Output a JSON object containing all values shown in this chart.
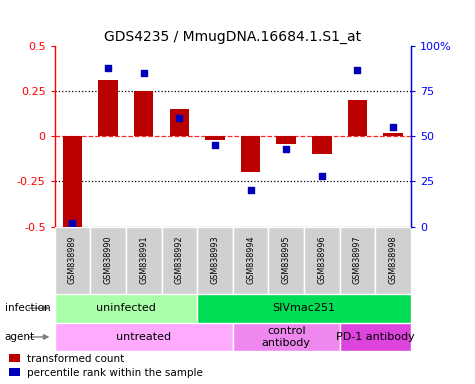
{
  "title": "GDS4235 / MmugDNA.16684.1.S1_at",
  "samples": [
    "GSM838989",
    "GSM838990",
    "GSM838991",
    "GSM838992",
    "GSM838993",
    "GSM838994",
    "GSM838995",
    "GSM838996",
    "GSM838997",
    "GSM838998"
  ],
  "transformed_count": [
    -0.5,
    0.31,
    0.25,
    0.15,
    -0.02,
    -0.2,
    -0.04,
    -0.1,
    0.2,
    0.02
  ],
  "percentile_rank": [
    2,
    88,
    85,
    60,
    45,
    20,
    43,
    28,
    87,
    55
  ],
  "ylim": [
    -0.5,
    0.5
  ],
  "y2lim": [
    0,
    100
  ],
  "yticks": [
    -0.5,
    -0.25,
    0,
    0.25,
    0.5
  ],
  "y2ticks": [
    0,
    25,
    50,
    75,
    100
  ],
  "y2ticklabels": [
    "0",
    "25",
    "50",
    "75",
    "100%"
  ],
  "hlines_dotted": [
    -0.25,
    0.25
  ],
  "hline_dashed": 0,
  "bar_color": "#bb0000",
  "scatter_color": "#0000bb",
  "infection_groups": [
    {
      "label": "uninfected",
      "start": 0,
      "end": 4,
      "color": "#aaffaa"
    },
    {
      "label": "SIVmac251",
      "start": 4,
      "end": 10,
      "color": "#00dd55"
    }
  ],
  "agent_groups": [
    {
      "label": "untreated",
      "start": 0,
      "end": 5,
      "color": "#ffaaff"
    },
    {
      "label": "control\nantibody",
      "start": 5,
      "end": 8,
      "color": "#ee88ee"
    },
    {
      "label": "PD-1 antibody",
      "start": 8,
      "end": 10,
      "color": "#dd44dd"
    }
  ],
  "legend_items": [
    {
      "label": "transformed count",
      "color": "#bb0000"
    },
    {
      "label": "percentile rank within the sample",
      "color": "#0000bb"
    }
  ],
  "row_label_infection": "infection",
  "row_label_agent": "agent",
  "background_color": "#ffffff",
  "title_fontsize": 10
}
